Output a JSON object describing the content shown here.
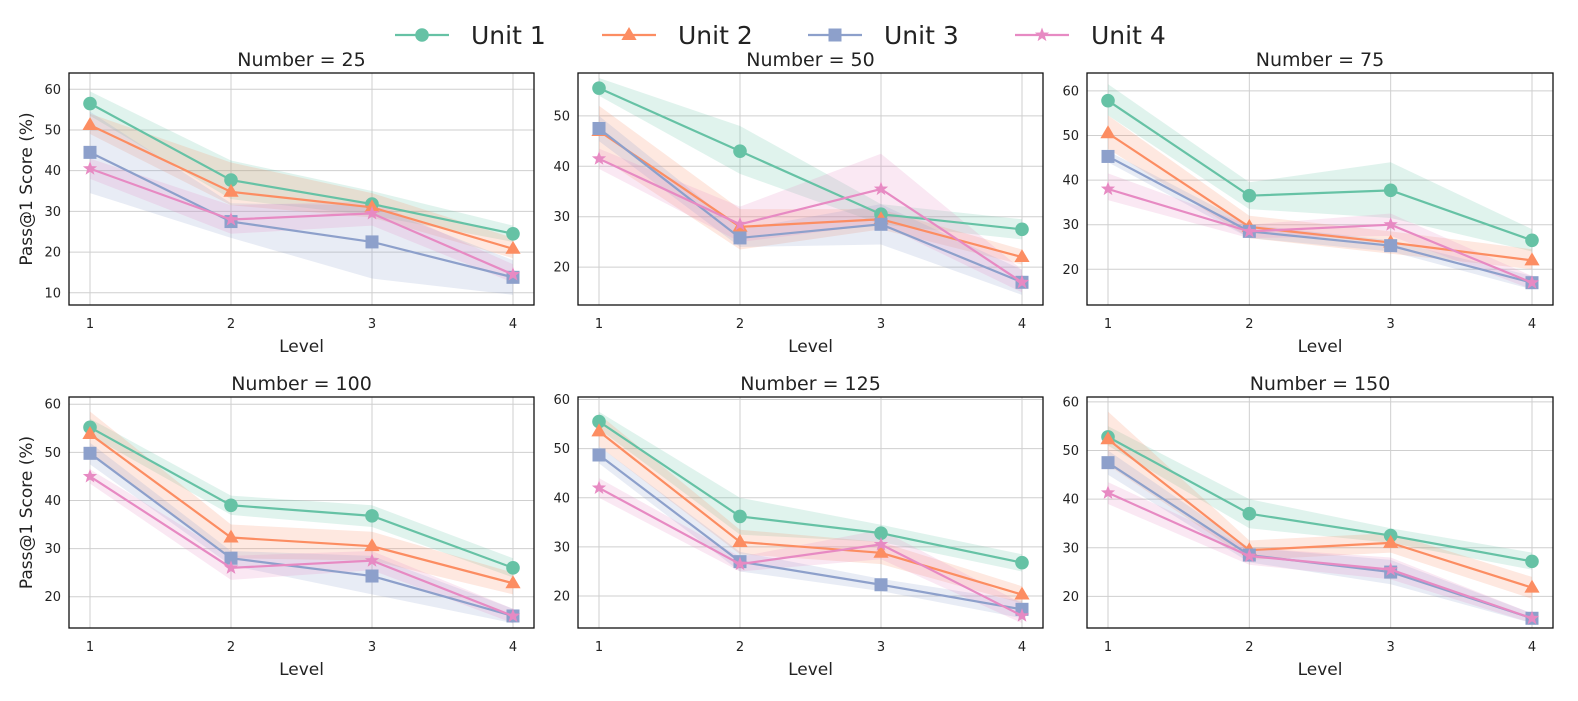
{
  "legend": [
    {
      "name": "Unit 1",
      "color": "#66c2a5",
      "marker": "circle"
    },
    {
      "name": "Unit 2",
      "color": "#fc8d62",
      "marker": "triangle"
    },
    {
      "name": "Unit 3",
      "color": "#8da0cb",
      "marker": "square"
    },
    {
      "name": "Unit 4",
      "color": "#e78ac3",
      "marker": "star"
    }
  ],
  "chart_data": [
    {
      "type": "line",
      "title": "Number = 25",
      "xlabel": "Level",
      "ylabel": "Pass@1 Score (%)",
      "x": [
        1,
        2,
        3,
        4
      ],
      "xticks": [
        "1",
        "2",
        "3",
        "4"
      ],
      "ylim": [
        7,
        64
      ],
      "yticks": [
        10,
        20,
        30,
        40,
        50,
        60
      ],
      "grid": true,
      "series": [
        {
          "name": "Unit 1",
          "values": [
            56.5,
            37.7,
            31.8,
            24.5
          ],
          "lower": [
            53.5,
            33.0,
            29.0,
            22.5
          ],
          "upper": [
            59.5,
            42.5,
            35.0,
            26.5
          ]
        },
        {
          "name": "Unit 2",
          "values": [
            51.2,
            34.8,
            31.0,
            20.8
          ],
          "lower": [
            49.0,
            31.5,
            28.5,
            18.5
          ],
          "upper": [
            54.0,
            42.0,
            34.5,
            23.5
          ]
        },
        {
          "name": "Unit 3",
          "values": [
            44.5,
            27.5,
            22.5,
            13.8
          ],
          "lower": [
            34.5,
            23.5,
            13.5,
            9.5
          ],
          "upper": [
            54.5,
            32.0,
            31.5,
            18.0
          ]
        },
        {
          "name": "Unit 4",
          "values": [
            40.5,
            28.0,
            29.5,
            14.5
          ],
          "lower": [
            38.0,
            24.5,
            26.5,
            12.5
          ],
          "upper": [
            43.0,
            31.5,
            32.5,
            17.0
          ]
        }
      ]
    },
    {
      "type": "line",
      "title": "Number = 50",
      "xlabel": "Level",
      "ylabel": "",
      "x": [
        1,
        2,
        3,
        4
      ],
      "xticks": [
        "1",
        "2",
        "3",
        "4"
      ],
      "ylim": [
        12.5,
        58.5
      ],
      "yticks": [
        20,
        30,
        40,
        50
      ],
      "grid": true,
      "series": [
        {
          "name": "Unit 1",
          "values": [
            55.5,
            43.0,
            30.5,
            27.5
          ],
          "lower": [
            54.0,
            38.5,
            28.5,
            25.5
          ],
          "upper": [
            57.5,
            48.0,
            32.5,
            29.5
          ]
        },
        {
          "name": "Unit 2",
          "values": [
            47.0,
            28.0,
            29.5,
            22.0
          ],
          "lower": [
            42.0,
            23.5,
            27.5,
            20.5
          ],
          "upper": [
            52.0,
            31.5,
            31.5,
            23.5
          ]
        },
        {
          "name": "Unit 3",
          "values": [
            47.5,
            25.8,
            28.5,
            17.0
          ],
          "lower": [
            45.0,
            24.0,
            24.5,
            14.5
          ],
          "upper": [
            50.0,
            27.5,
            32.5,
            19.5
          ]
        },
        {
          "name": "Unit 4",
          "values": [
            41.5,
            28.5,
            35.5,
            17.0
          ],
          "lower": [
            39.5,
            25.0,
            28.5,
            15.0
          ],
          "upper": [
            43.5,
            32.0,
            42.5,
            19.5
          ]
        }
      ]
    },
    {
      "type": "line",
      "title": "Number = 75",
      "xlabel": "Level",
      "ylabel": "",
      "x": [
        1,
        2,
        3,
        4
      ],
      "xticks": [
        "1",
        "2",
        "3",
        "4"
      ],
      "ylim": [
        12,
        64
      ],
      "yticks": [
        20,
        30,
        40,
        50,
        60
      ],
      "grid": true,
      "series": [
        {
          "name": "Unit 1",
          "values": [
            57.8,
            36.5,
            37.7,
            26.5
          ],
          "lower": [
            54.5,
            33.5,
            31.5,
            24.0
          ],
          "upper": [
            61.5,
            39.5,
            44.0,
            29.0
          ]
        },
        {
          "name": "Unit 2",
          "values": [
            50.5,
            29.5,
            26.0,
            22.0
          ],
          "lower": [
            47.0,
            27.0,
            23.5,
            20.0
          ],
          "upper": [
            54.5,
            32.0,
            28.5,
            24.5
          ]
        },
        {
          "name": "Unit 3",
          "values": [
            45.3,
            28.5,
            25.3,
            17.0
          ],
          "lower": [
            44.0,
            27.0,
            24.0,
            15.5
          ],
          "upper": [
            46.5,
            30.0,
            26.5,
            18.5
          ]
        },
        {
          "name": "Unit 4",
          "values": [
            38.0,
            28.5,
            30.0,
            17.0
          ],
          "lower": [
            35.5,
            27.0,
            27.5,
            15.5
          ],
          "upper": [
            41.5,
            30.0,
            32.5,
            18.5
          ]
        }
      ]
    },
    {
      "type": "line",
      "title": "Number = 100",
      "xlabel": "Level",
      "ylabel": "Pass@1 Score (%)",
      "x": [
        1,
        2,
        3,
        4
      ],
      "xticks": [
        "1",
        "2",
        "3",
        "4"
      ],
      "ylim": [
        13.5,
        61.5
      ],
      "yticks": [
        20,
        30,
        40,
        50,
        60
      ],
      "grid": true,
      "series": [
        {
          "name": "Unit 1",
          "values": [
            55.2,
            39.0,
            36.8,
            26.0
          ],
          "lower": [
            53.5,
            37.0,
            34.5,
            24.0
          ],
          "upper": [
            57.0,
            41.0,
            39.0,
            28.0
          ]
        },
        {
          "name": "Unit 2",
          "values": [
            53.8,
            32.3,
            30.5,
            22.8
          ],
          "lower": [
            49.5,
            28.0,
            27.5,
            20.5
          ],
          "upper": [
            58.5,
            35.0,
            33.5,
            25.0
          ]
        },
        {
          "name": "Unit 3",
          "values": [
            49.8,
            28.0,
            24.3,
            16.0
          ],
          "lower": [
            47.5,
            26.5,
            20.5,
            14.5
          ],
          "upper": [
            52.0,
            29.5,
            28.5,
            17.5
          ]
        },
        {
          "name": "Unit 4",
          "values": [
            45.0,
            26.0,
            27.5,
            16.0
          ],
          "lower": [
            43.5,
            23.5,
            25.5,
            14.5
          ],
          "upper": [
            46.5,
            28.5,
            29.5,
            17.5
          ]
        }
      ]
    },
    {
      "type": "line",
      "title": "Number = 125",
      "xlabel": "Level",
      "ylabel": "",
      "x": [
        1,
        2,
        3,
        4
      ],
      "xticks": [
        "1",
        "2",
        "3",
        "4"
      ],
      "ylim": [
        13.5,
        60.5
      ],
      "yticks": [
        20,
        30,
        40,
        50,
        60
      ],
      "grid": true,
      "series": [
        {
          "name": "Unit 1",
          "values": [
            55.5,
            36.2,
            32.8,
            26.8
          ],
          "lower": [
            54.0,
            32.5,
            31.0,
            25.0
          ],
          "upper": [
            57.5,
            40.0,
            34.5,
            28.5
          ]
        },
        {
          "name": "Unit 2",
          "values": [
            53.5,
            31.0,
            28.8,
            20.3
          ],
          "lower": [
            50.5,
            28.5,
            26.5,
            18.5
          ],
          "upper": [
            57.0,
            33.5,
            31.0,
            22.0
          ]
        },
        {
          "name": "Unit 3",
          "values": [
            48.7,
            27.0,
            22.3,
            17.3
          ],
          "lower": [
            47.0,
            25.0,
            21.0,
            15.5
          ],
          "upper": [
            50.5,
            29.0,
            23.5,
            19.0
          ]
        },
        {
          "name": "Unit 4",
          "values": [
            42.0,
            26.5,
            30.5,
            16.0
          ],
          "lower": [
            40.0,
            25.0,
            27.5,
            14.5
          ],
          "upper": [
            44.0,
            28.0,
            33.5,
            18.5
          ]
        }
      ]
    },
    {
      "type": "line",
      "title": "Number = 150",
      "xlabel": "Level",
      "ylabel": "",
      "x": [
        1,
        2,
        3,
        4
      ],
      "xticks": [
        "1",
        "2",
        "3",
        "4"
      ],
      "ylim": [
        13.5,
        61
      ],
      "yticks": [
        20,
        30,
        40,
        50,
        60
      ],
      "grid": true,
      "series": [
        {
          "name": "Unit 1",
          "values": [
            52.8,
            37.0,
            32.5,
            27.2
          ],
          "lower": [
            51.0,
            34.0,
            31.0,
            25.5
          ],
          "upper": [
            55.0,
            40.0,
            34.0,
            29.0
          ]
        },
        {
          "name": "Unit 2",
          "values": [
            52.3,
            29.5,
            31.0,
            21.8
          ],
          "lower": [
            47.0,
            27.5,
            29.0,
            19.5
          ],
          "upper": [
            58.0,
            31.5,
            33.0,
            24.0
          ]
        },
        {
          "name": "Unit 3",
          "values": [
            47.5,
            28.5,
            25.0,
            15.5
          ],
          "lower": [
            45.0,
            27.0,
            22.5,
            14.5
          ],
          "upper": [
            50.0,
            30.0,
            27.5,
            16.5
          ]
        },
        {
          "name": "Unit 4",
          "values": [
            41.3,
            28.3,
            25.5,
            15.5
          ],
          "lower": [
            39.0,
            26.5,
            23.5,
            14.5
          ],
          "upper": [
            43.5,
            30.0,
            28.0,
            16.5
          ]
        }
      ]
    }
  ]
}
